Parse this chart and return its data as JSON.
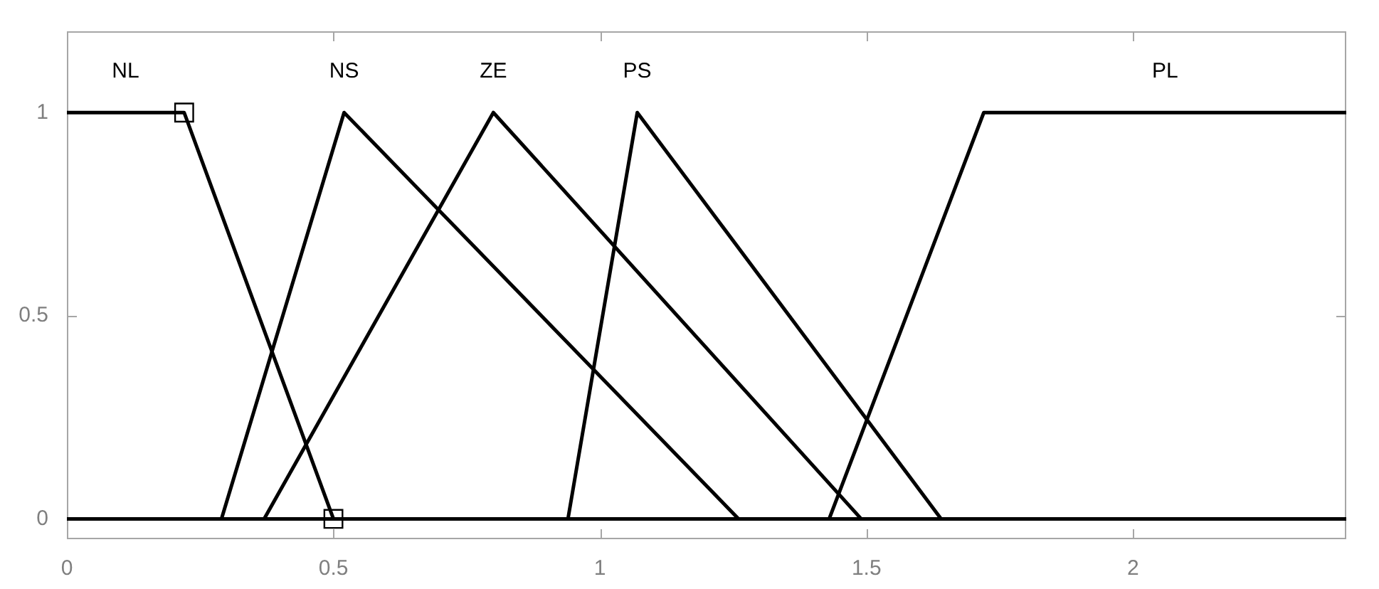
{
  "chart_data": {
    "type": "line",
    "xlim": [
      0,
      2.4
    ],
    "xticks": [
      0,
      0.5,
      1,
      1.5,
      2
    ],
    "ylim": [
      -0.05,
      1.2
    ],
    "yticks": [
      0,
      0.5,
      1
    ],
    "grid": false,
    "legend": false,
    "marker": "none",
    "series": [
      {
        "name": "NL",
        "color": "#000000",
        "x": [
          0,
          0.22,
          0.5,
          2.4
        ],
        "values": [
          1,
          1,
          0,
          0
        ]
      },
      {
        "name": "NS",
        "color": "#000000",
        "x": [
          0,
          0.29,
          0.52,
          1.26,
          2.4
        ],
        "values": [
          0,
          0,
          1,
          0,
          0
        ]
      },
      {
        "name": "ZE",
        "color": "#000000",
        "x": [
          0,
          0.37,
          0.8,
          1.49,
          2.4
        ],
        "values": [
          0,
          0,
          1,
          0,
          0
        ]
      },
      {
        "name": "PS",
        "color": "#000000",
        "x": [
          0,
          0.94,
          1.07,
          1.64,
          2.4
        ],
        "values": [
          0,
          0,
          1,
          0,
          0
        ]
      },
      {
        "name": "PL",
        "color": "#000000",
        "x": [
          0,
          1.43,
          1.72,
          2.4
        ],
        "values": [
          0,
          0,
          1,
          1
        ]
      },
      {
        "type": "scatter",
        "marker": "square",
        "color": "#000000",
        "x": [
          0.22,
          0.5
        ],
        "values": [
          1,
          0
        ]
      }
    ]
  }
}
